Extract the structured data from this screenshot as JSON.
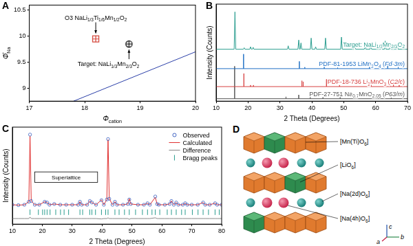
{
  "chart_data": [
    {
      "panel": "A",
      "type": "scatter",
      "x_label": "Φcation",
      "y_label": "Φ̄Na",
      "xlim": [
        17,
        20
      ],
      "xticks": [
        17,
        18,
        19,
        20
      ],
      "ylim": [
        8.75,
        10.6
      ],
      "yticks": [
        9,
        9.5,
        10,
        10.5
      ],
      "grid": false,
      "series": [
        {
          "type": "line",
          "color": "#2b3fa8",
          "x": [
            17.8,
            20
          ],
          "values": [
            8.75,
            9.7
          ]
        },
        {
          "name": "O3 NaLi1/3Ti1/6Mn1/2O2",
          "color": "#d13b2f",
          "marker": "square_plus",
          "x": [
            18.2
          ],
          "values": [
            9.95
          ]
        },
        {
          "name": "Target: NaLi1/3Mn2/3O2",
          "color": "#000000",
          "marker": "circle_plus",
          "x": [
            18.8
          ],
          "values": [
            9.85
          ]
        }
      ]
    },
    {
      "panel": "B",
      "type": "line",
      "x_label": "2 Theta (Degrees)",
      "y_label": "Intensity (Counts)",
      "xlim": [
        10,
        70
      ],
      "xticks": [
        10,
        20,
        30,
        40,
        50,
        60,
        70
      ],
      "ylim": [
        0,
        10
      ],
      "tick_labels": "x",
      "grid": false,
      "series": [
        {
          "name": "Target: NaLi1/3Mn2/3O2",
          "type": "line",
          "color": "#2a9d8f",
          "x": [
            10,
            15.65,
            15.9,
            16.15,
            18.55,
            18.8,
            19.05,
            20.55,
            20.8,
            21.05,
            21.35,
            21.6,
            21.85,
            32.35,
            32.6,
            32.85,
            35.65,
            35.9,
            36.15,
            36.35,
            36.6,
            36.85,
            39.55,
            39.8,
            40.05,
            40.95,
            41.2,
            41.45,
            44.05,
            44.3,
            44.55,
            49.05,
            49.3,
            49.55,
            53.25,
            53.5,
            53.75,
            56.45,
            56.7,
            56.95,
            58.25,
            58.5,
            58.75,
            61.55,
            61.8,
            62.05,
            62.75,
            63.0,
            63.25,
            64.35,
            64.6,
            64.85,
            66.55,
            66.8,
            67.05,
            70
          ],
          "values": [
            5.35,
            5.35,
            9.2,
            5.35,
            5.35,
            5.5,
            5.35,
            5.35,
            5.6,
            5.35,
            5.35,
            5.55,
            5.35,
            5.35,
            5.7,
            5.35,
            5.35,
            6.3,
            5.35,
            5.35,
            6.0,
            5.35,
            5.35,
            6.5,
            5.35,
            5.35,
            5.6,
            5.35,
            5.35,
            6.5,
            5.35,
            5.35,
            6.6,
            5.35,
            5.35,
            5.6,
            5.35,
            5.35,
            5.7,
            5.35,
            5.35,
            5.8,
            5.35,
            5.35,
            5.6,
            5.35,
            5.35,
            6.2,
            5.35,
            5.35,
            5.9,
            5.35,
            5.35,
            5.8,
            5.35,
            5.35
          ]
        },
        {
          "name": "PDF-81-1953 LiMn2O4 (Fd-3m)",
          "type": "stick",
          "color": "#1f6fc4",
          "baseline": 3.35,
          "x": [
            18.6,
            36.1,
            37.8,
            43.9,
            48.1,
            58.1,
            63.8,
            67.1
          ],
          "values": [
            4.85,
            4.1,
            3.5,
            4.15,
            3.45,
            3.8,
            3.95,
            3.55
          ]
        },
        {
          "name": "PDF-18-736 Li2MnO3 (C2/c)",
          "type": "stick",
          "color": "#d64040",
          "baseline": 1.5,
          "x": [
            18.7,
            20.8,
            21.7,
            36.9,
            37.3,
            44.6,
            48.7,
            58.6,
            64.6,
            65.6,
            67.4
          ],
          "values": [
            2.85,
            1.65,
            1.65,
            2.1,
            2.0,
            2.25,
            1.65,
            1.7,
            2.0,
            1.85,
            1.65
          ]
        },
        {
          "name": "PDF-27-751 Na0.7MnO2.05 (P63/m)",
          "type": "stick",
          "color": "#555555",
          "baseline": 0.25,
          "x": [
            15.8,
            31.9,
            35.9,
            39.5,
            43.5,
            48.9,
            62.8,
            64.9
          ],
          "values": [
            3.6,
            0.45,
            0.65,
            0.5,
            0.4,
            0.45,
            0.35,
            0.35
          ]
        }
      ]
    },
    {
      "panel": "C",
      "type": "line",
      "x_label": "2 Theta (Degrees)",
      "y_label": "Intensity (Counts)",
      "xlim": [
        10,
        80
      ],
      "xticks": [
        10,
        20,
        30,
        40,
        50,
        60,
        70,
        80
      ],
      "ylim": [
        -0.25,
        1.05
      ],
      "tick_labels": "x",
      "grid": false,
      "legend": "upper right",
      "x": [
        10,
        12,
        14,
        15.5,
        15.9,
        16.3,
        17.5,
        19,
        20.8,
        21.6,
        22.4,
        24,
        26,
        28,
        30,
        32,
        32.6,
        33.2,
        35,
        35.9,
        36.6,
        38,
        39.8,
        40.6,
        41.6,
        42,
        42.4,
        43.5,
        44.3,
        45,
        47,
        48.6,
        49.1,
        49.6,
        52,
        54,
        55.2,
        56,
        57.8,
        58.4,
        59,
        61,
        62.6,
        63.2,
        64,
        64.8,
        65.5,
        67,
        67.8,
        68.5,
        70,
        72,
        73.8,
        74.5,
        76,
        77.8,
        78.5,
        80
      ],
      "series": [
        {
          "name": "Observed",
          "type": "scatter",
          "marker": "open_circle",
          "color": "#3b5fc0",
          "values": [
            0.01,
            0.005,
            0.01,
            0.05,
            0.95,
            0.06,
            0.01,
            0.01,
            0.05,
            0.04,
            0.01,
            0.02,
            0.01,
            0.01,
            0.01,
            0.01,
            0.05,
            0.01,
            0.01,
            0.06,
            0.04,
            0.01,
            0.07,
            0.01,
            0.08,
            0.89,
            0.09,
            0.01,
            0.05,
            0.01,
            0.01,
            0.02,
            0.08,
            0.02,
            0.01,
            0.01,
            0.03,
            0.01,
            0.12,
            0.02,
            0.01,
            0.01,
            0.02,
            0.06,
            0.01,
            0.04,
            0.01,
            0.01,
            0.03,
            0.01,
            0.01,
            0.01,
            0.04,
            0.01,
            0.01,
            0.03,
            0.01,
            0.01
          ]
        },
        {
          "name": "Calculated",
          "type": "line",
          "color": "#e03030",
          "values": [
            0.01,
            0.005,
            0.01,
            0.05,
            0.93,
            0.06,
            0.01,
            0.01,
            0.05,
            0.04,
            0.01,
            0.02,
            0.01,
            0.01,
            0.01,
            0.01,
            0.05,
            0.01,
            0.01,
            0.06,
            0.04,
            0.01,
            0.075,
            0.01,
            0.08,
            0.88,
            0.09,
            0.01,
            0.05,
            0.01,
            0.01,
            0.02,
            0.09,
            0.02,
            0.01,
            0.01,
            0.03,
            0.01,
            0.11,
            0.02,
            0.01,
            0.01,
            0.02,
            0.06,
            0.01,
            0.04,
            0.01,
            0.01,
            0.03,
            0.01,
            0.01,
            0.01,
            0.04,
            0.01,
            0.01,
            0.03,
            0.01,
            0.01
          ]
        },
        {
          "name": "Difference",
          "type": "line",
          "color": "#888888",
          "values": [
            -0.175,
            -0.175,
            -0.175,
            -0.175,
            -0.155,
            -0.175,
            -0.175,
            -0.175,
            -0.175,
            -0.175,
            -0.175,
            -0.175,
            -0.175,
            -0.175,
            -0.175,
            -0.175,
            -0.175,
            -0.175,
            -0.175,
            -0.175,
            -0.175,
            -0.175,
            -0.18,
            -0.175,
            -0.175,
            -0.165,
            -0.175,
            -0.175,
            -0.175,
            -0.175,
            -0.175,
            -0.175,
            -0.185,
            -0.175,
            -0.175,
            -0.175,
            -0.175,
            -0.175,
            -0.165,
            -0.175,
            -0.175,
            -0.175,
            -0.175,
            -0.175,
            -0.175,
            -0.175,
            -0.175,
            -0.175,
            -0.175,
            -0.175,
            -0.175,
            -0.175,
            -0.175,
            -0.175,
            -0.175,
            -0.175,
            -0.175,
            -0.175
          ]
        },
        {
          "name": "Bragg peaks",
          "type": "scatter",
          "marker": "vertical_tick",
          "color": "#2a9d8f",
          "x": [
            15.9,
            18.7,
            20.1,
            20.8,
            21.6,
            22.6,
            24.5,
            26.1,
            27.3,
            28.8,
            32.6,
            33.5,
            35.9,
            36.6,
            37.8,
            39.8,
            41.2,
            42.0,
            44.3,
            45.7,
            47.5,
            49.1,
            51.2,
            53.5,
            55.2,
            56.7,
            57.8,
            59.3,
            61.8,
            63.2,
            64.8,
            66.6,
            67.8,
            70.2,
            72.1,
            73.8,
            75.6,
            77.8,
            79.2
          ],
          "values": [
            -0.09,
            -0.09,
            -0.09,
            -0.09,
            -0.09,
            -0.09,
            -0.09,
            -0.09,
            -0.09,
            -0.09,
            -0.09,
            -0.09,
            -0.09,
            -0.09,
            -0.09,
            -0.09,
            -0.09,
            -0.09,
            -0.09,
            -0.09,
            -0.09,
            -0.09,
            -0.09,
            -0.09,
            -0.09,
            -0.09,
            -0.09,
            -0.09,
            -0.09,
            -0.09,
            -0.09,
            -0.09,
            -0.09,
            -0.09,
            -0.09,
            -0.09,
            -0.09,
            -0.09,
            -0.09
          ]
        }
      ],
      "annotation": {
        "text": "Superlattice",
        "x": [
          17.5,
          38.5
        ],
        "y": [
          0.31,
          0.45
        ]
      }
    }
  ],
  "diagram": {
    "panel": "D",
    "labels": [
      "[Mn(Ti)O6]",
      "[LiO6]",
      "[Na(2d)O6]",
      "[Na(4h)O6]"
    ],
    "axes": [
      "c",
      "b",
      "a"
    ]
  }
}
